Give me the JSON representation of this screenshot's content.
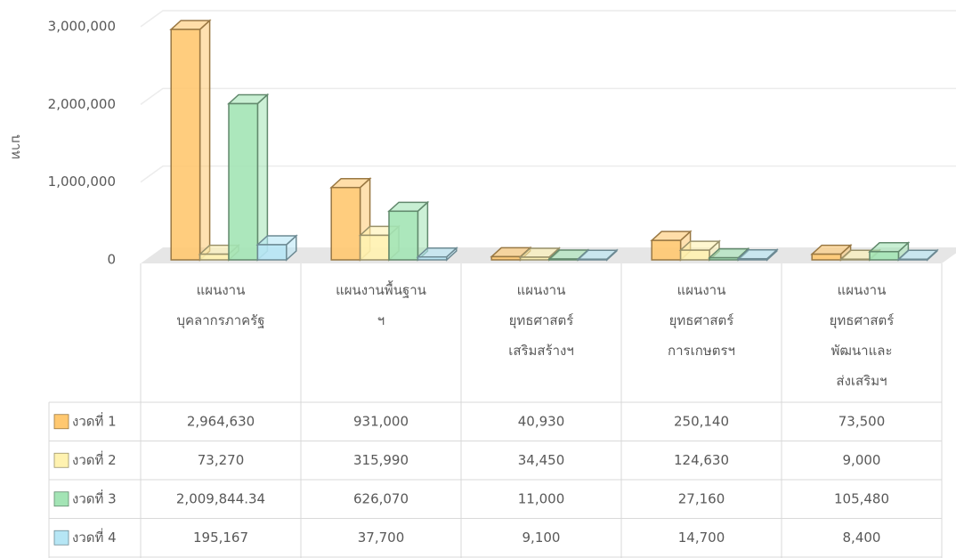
{
  "chart_data": {
    "type": "bar3d",
    "y_label": "บาท",
    "categories": [
      "แผนงาน\nบุคลากรภาครัฐ",
      "แผนงานพื้นฐาน\nฯ",
      "แผนงาน\nยุทธศาสตร์\nเสริมสร้างฯ",
      "แผนงาน\nยุทธศาสตร์\nการเกษตรฯ",
      "แผนงาน\nยุทธศาสตร์\nพัฒนาและ\nส่งเสริมฯ"
    ],
    "series": [
      {
        "name": "งวดที่ 1",
        "color": "#ffc870",
        "values": [
          2964630,
          931000,
          40930,
          250140,
          73500
        ],
        "value_labels": [
          "2,964,630",
          "931,000",
          "40,930",
          "250,140",
          "73,500"
        ]
      },
      {
        "name": "งวดที่ 2",
        "color": "#fff2b0",
        "values": [
          73270,
          315990,
          34450,
          124630,
          9000
        ],
        "value_labels": [
          "73,270",
          "315,990",
          "34,450",
          "124,630",
          "9,000"
        ]
      },
      {
        "name": "งวดที่ 3",
        "color": "#a3e4b5",
        "values": [
          2009844.34,
          626070,
          11000,
          27160,
          105480
        ],
        "value_labels": [
          "2,009,844.34",
          "626,070",
          "11,000",
          "27,160",
          "105,480"
        ]
      },
      {
        "name": "งวดที่ 4",
        "color": "#b6e6f5",
        "values": [
          195167,
          37700,
          9100,
          14700,
          8400
        ],
        "value_labels": [
          "195,167",
          "37,700",
          "9,100",
          "14,700",
          "8,400"
        ]
      }
    ],
    "ylim": [
      0,
      3000000
    ],
    "yticks": [
      {
        "value": 0,
        "label": "0"
      },
      {
        "value": 1000000,
        "label": "1,000,000"
      },
      {
        "value": 2000000,
        "label": "2,000,000"
      },
      {
        "value": 3000000,
        "label": "3,000,000"
      }
    ],
    "grid": true
  }
}
